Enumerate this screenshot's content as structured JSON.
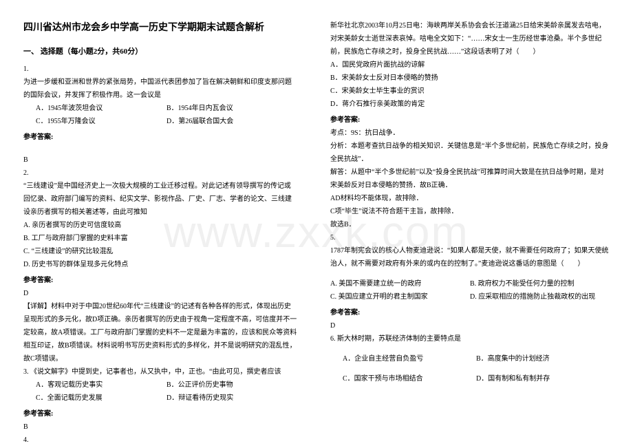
{
  "watermark": "www.zxxk.com",
  "left": {
    "title": "四川省达州市龙会乡中学高一历史下学期期末试题含解析",
    "sectionHead": "一、 选择题（每小题2分，共60分）",
    "q1num": "1.",
    "q1text": "为进一步缓和亚洲和世界的紧张局势，中国派代表团参加了旨在解决朝鲜和印度支那问题的国际会议，并发挥了积极作用。这一会议是",
    "q1a": "A．1945年波茨坦会议",
    "q1b": "B．1954年日内瓦会议",
    "q1c": "C．1955年万隆会议",
    "q1d": "D．第26届联合国大会",
    "ansLabel": "参考答案:",
    "q1ans": "B",
    "q2num": "2.",
    "q2text": "“三线建设”是中国经济史上一次极大规模的工业迁移过程。对此记述有领导撰写的传记或回忆录、政府部门编写的资料、纪实文学、影视作品、厂史、厂志、学者的论文、三线建设亲历者撰写的相关著述等，由此可推知",
    "q2a": "A. 亲历者撰写的历史可信度较高",
    "q2b": "B. 工厂与政府部门掌握的史料丰富",
    "q2c": "C. “三线建设”的研究比较混乱",
    "q2d": "D. 历史书写的群体呈现多元化特点",
    "q2ans": "D",
    "q2exp": "【详解】材料中对于中国20世纪60年代“三线建设”的记述有各种各样的形式，体现出历史呈现形式的多元化，故D项正确。亲历者撰写的历史由于视角一定程度不高，可信度并不一定较高，故A项错误。工厂与政府部门掌握的史料不一定是最为丰富的，应该和民众等资料相互印证，故B项错误。材料说明书写历史资料形式的多样化，并不是说明研究的混乱性，故C项错误。",
    "q3num": "3.",
    "q3text": "《说文解字》中提到史，记事者也，从又执中，中，正也。“由此可见，撰史者应该",
    "q3a": "A．客观记载历史事实",
    "q3b": "B．公正评价历史事物",
    "q3c": "C．全面记载历史发展",
    "q3d": "D．辩证看待历史现实",
    "q3ans": "B",
    "q4num": "4."
  },
  "right": {
    "q4text": "新华社北京2003年10月25日电：海峡两岸关系协会会长汪道涵25日给宋美龄亲属发去唁电，对宋美龄女士逝世深表哀悼。唁电全文如下：“……宋女士一生历经世事沧桑。半个多世纪前，民族危亡存续之时，投身全民抗战……”这段话表明了对（　　）",
    "q4a": "A．国民党政府片面抗战的谅解",
    "q4b": "B．宋美龄女士反对日本侵略的赞扬",
    "q4c": "C．宋美龄女士毕生事业的赏识",
    "q4d": "D．蒋介石推行亲美政策的肯定",
    "ansLabel": "参考答案:",
    "q4ansLine1": "考点：9S：抗日战争．",
    "q4ansLine2": "分析：本题考查抗日战争的相关知识．关键信息是“半个多世纪前，民族危亡存续之时，投身全民抗战”．",
    "q4ansLine3": "解答：从题中“半个多世纪前”以及“投身全民抗战”可推算时间大致是在抗日战争时期，是对宋美龄反对日本侵略的赞扬．故B正确．",
    "q4ansLine4": "AD材料均不能体现，故排除．",
    "q4ansLine5": "C项“毕生”说法不符合题干主旨，故排除．",
    "q4ansLine6": "故选B．",
    "q5num": "5.",
    "q5text": "1787年制宪会议的核心人物麦迪逊说：“如果人都是天使，就不需要任何政府了；如果天使统治人，就不需要对政府有外来的或内在的控制了。”麦迪逊说这番话的意图是（　　）",
    "q5a": "A. 美国不需要建立统一的政府",
    "q5b": "B. 政府权力不能受任何力量的控制",
    "q5c": "C. 美国应建立开明的君主制国家",
    "q5d": "D. 应采取相应的措施防止独裁政权的出现",
    "q5ans": "D",
    "q6num": "6.",
    "q6text": "斯大林时期，苏联经济体制的主要特点是",
    "q6a": "A．企业自主经营自负盈亏",
    "q6b": "B．高度集中的计划经济",
    "q6c": "C．国家干预与市场相结合",
    "q6d": "D．国有制和私有制并存"
  }
}
